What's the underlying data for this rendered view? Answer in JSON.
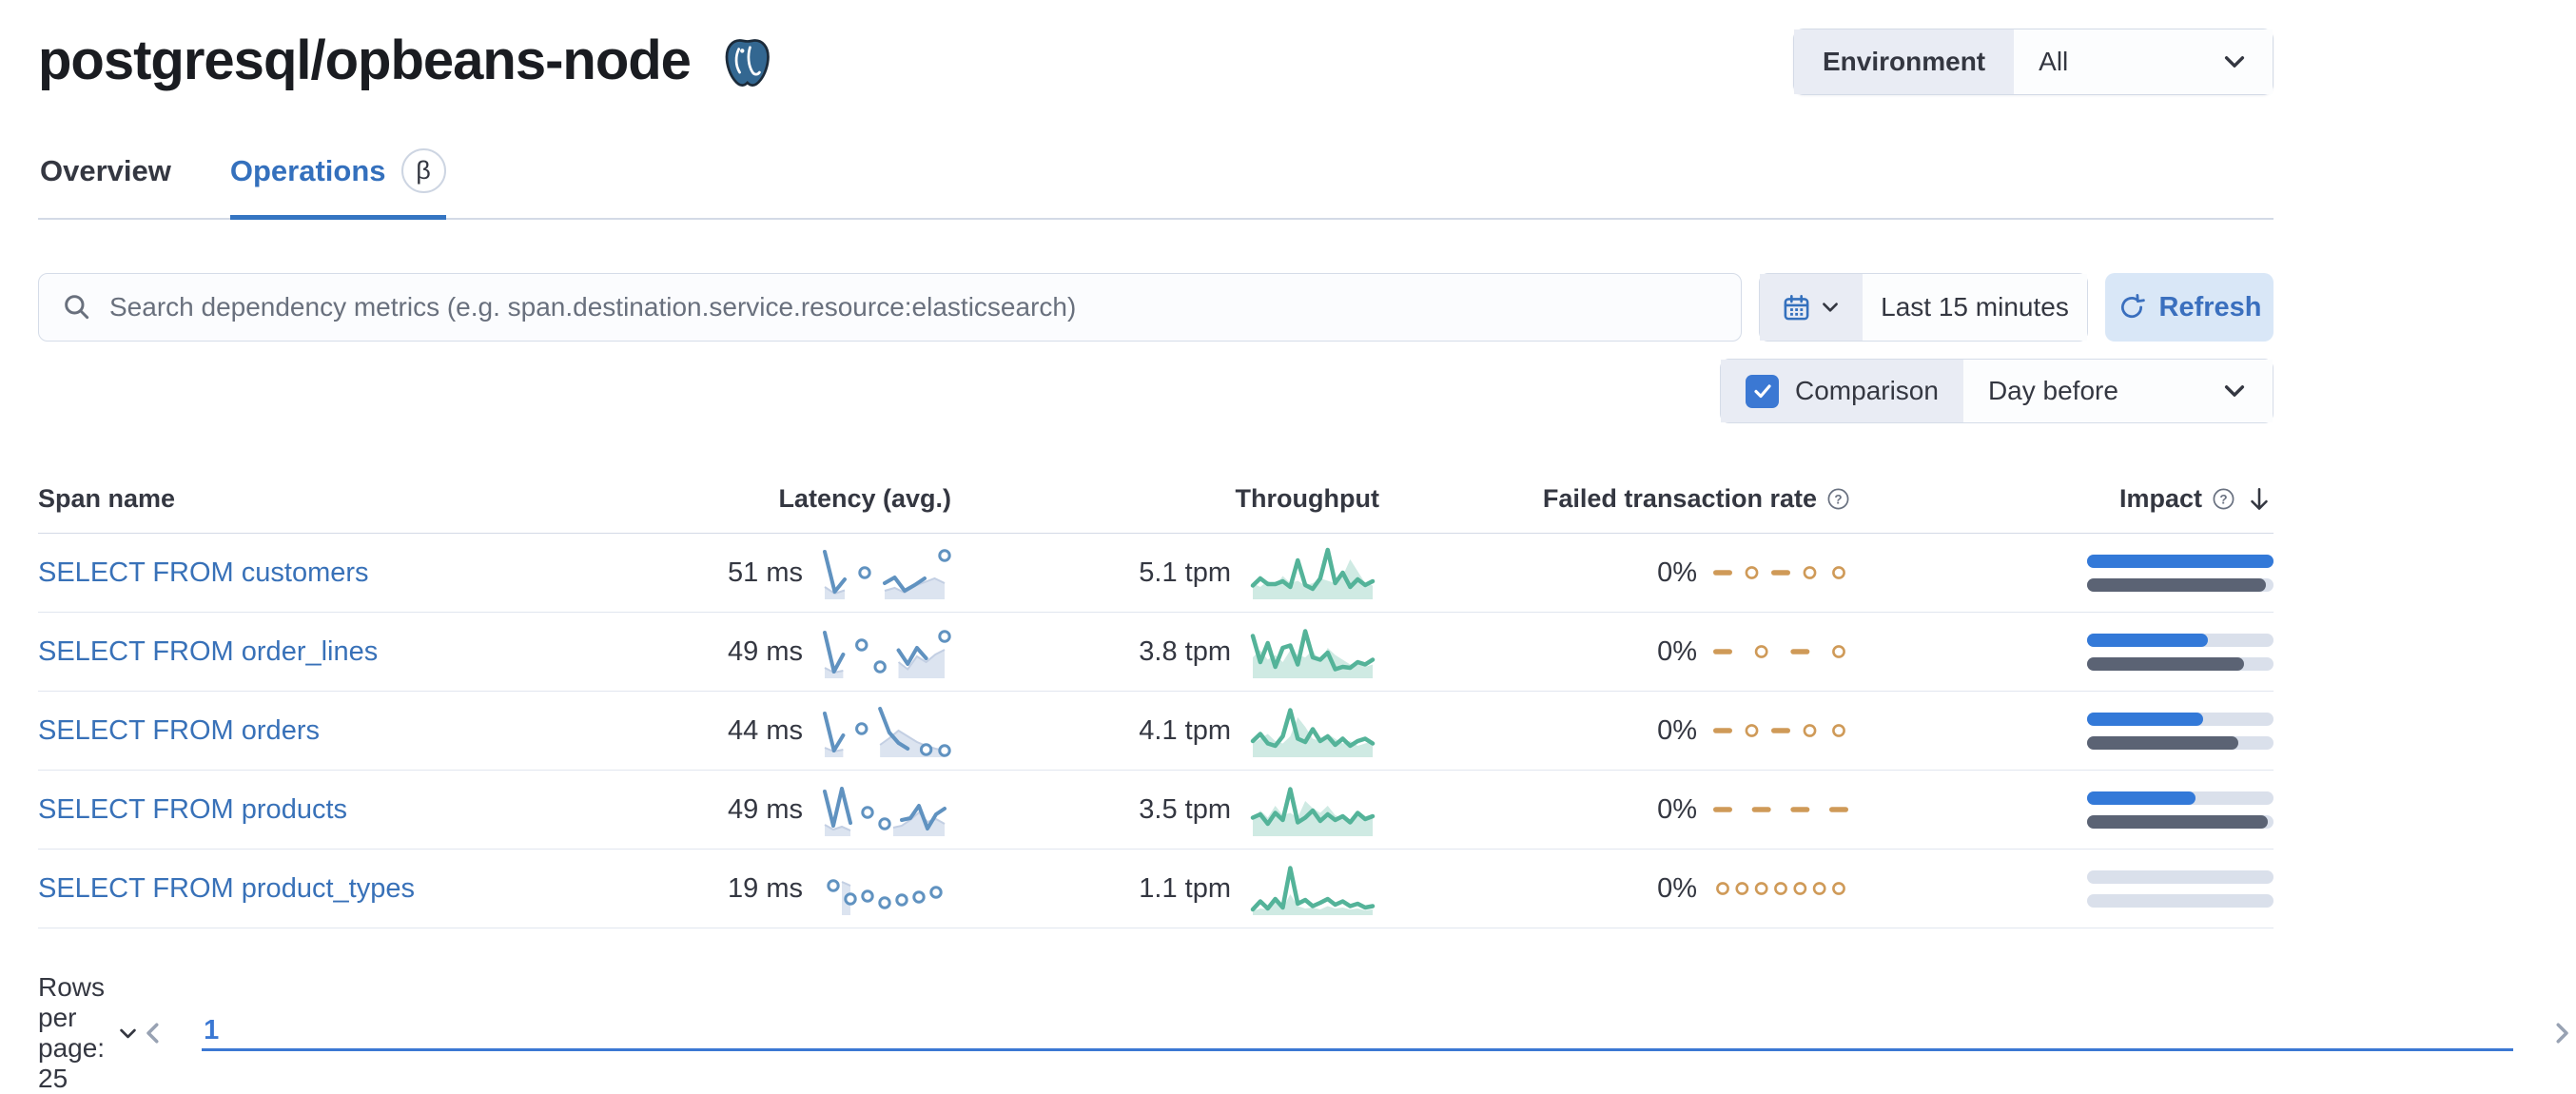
{
  "page_title": "postgresql/opbeans-node",
  "environment": {
    "label": "Environment",
    "value": "All"
  },
  "tabs": [
    {
      "label": "Overview",
      "active": false
    },
    {
      "label": "Operations",
      "active": true,
      "badge": "β"
    }
  ],
  "toolbar": {
    "search_placeholder": "Search dependency metrics (e.g. span.destination.service.resource:elasticsearch)",
    "time_range": "Last 15 minutes",
    "refresh_label": "Refresh",
    "comparison": {
      "label": "Comparison",
      "checked": true,
      "value": "Day before"
    }
  },
  "icons": {
    "logo": "postgresql-elephant",
    "search": "magnifying-glass",
    "calendar": "calendar",
    "chevron_down": "chevron-down",
    "refresh": "refresh-arrow",
    "check": "checkmark",
    "info": "question-in-circle",
    "sort": "arrow-down",
    "prev": "chevron-left",
    "next": "chevron-right"
  },
  "table": {
    "columns": [
      {
        "label": "Span name",
        "align": "left"
      },
      {
        "label": "Latency (avg.)",
        "align": "right"
      },
      {
        "label": "Throughput",
        "align": "right"
      },
      {
        "label": "Failed transaction rate",
        "align": "right",
        "info": true
      },
      {
        "label": "Impact",
        "align": "right",
        "info": true,
        "sort": "desc"
      }
    ],
    "rows": [
      {
        "span_name": "SELECT FROM customers",
        "latency": "51 ms",
        "throughput": "5.1 tpm",
        "failed_rate": "0%",
        "impact_pct": 100,
        "impact_prev_pct": 96,
        "latency_spark": {
          "curr": [
            96,
            12,
            38,
            null,
            52,
            null,
            30,
            42,
            14,
            26,
            40,
            null,
            88
          ],
          "prev": [
            22,
            8,
            15,
            null,
            null,
            null,
            14,
            20,
            10,
            24,
            32,
            40,
            30
          ]
        },
        "throughput_spark": {
          "curr": [
            25,
            40,
            28,
            28,
            34,
            22,
            78,
            26,
            18,
            40,
            100,
            30,
            52,
            22,
            38,
            26,
            34
          ],
          "prev": [
            30,
            22,
            35,
            25,
            45,
            30,
            35,
            25,
            30,
            40,
            35,
            30,
            45,
            80,
            55,
            30,
            25
          ]
        },
        "failed_spark": [
          "dash",
          "dot",
          "dash",
          "dot",
          "dot"
        ]
      },
      {
        "span_name": "SELECT FROM order_lines",
        "latency": "49 ms",
        "throughput": "3.8 tpm",
        "failed_rate": "0%",
        "impact_pct": 65,
        "impact_prev_pct": 84,
        "latency_spark": {
          "curr": [
            92,
            10,
            46,
            null,
            66,
            null,
            20,
            null,
            55,
            26,
            60,
            38,
            null,
            84
          ],
          "prev": [
            18,
            8,
            12,
            null,
            22,
            null,
            null,
            null,
            30,
            15,
            42,
            30,
            46,
            56
          ]
        },
        "throughput_spark": {
          "curr": [
            85,
            30,
            70,
            20,
            60,
            65,
            25,
            95,
            40,
            35,
            50,
            15,
            20,
            18,
            30,
            25,
            35
          ],
          "prev": [
            40,
            55,
            35,
            45,
            30,
            55,
            45,
            40,
            55,
            30,
            60,
            45,
            35,
            25,
            30,
            20,
            25
          ]
        },
        "failed_spark": [
          "dash",
          "dot",
          "dash",
          "dot"
        ]
      },
      {
        "span_name": "SELECT FROM orders",
        "latency": "44 ms",
        "throughput": "4.1 tpm",
        "failed_rate": "0%",
        "impact_pct": 62,
        "impact_prev_pct": 81,
        "latency_spark": {
          "curr": [
            88,
            10,
            42,
            null,
            56,
            null,
            98,
            48,
            26,
            14,
            null,
            12,
            null,
            10
          ],
          "prev": [
            16,
            8,
            12,
            null,
            null,
            null,
            22,
            36,
            52,
            40,
            28,
            20,
            14,
            10
          ]
        },
        "throughput_spark": {
          "curr": [
            30,
            45,
            25,
            20,
            40,
            95,
            35,
            28,
            55,
            30,
            40,
            22,
            35,
            20,
            30,
            35,
            25
          ],
          "prev": [
            25,
            35,
            45,
            30,
            25,
            40,
            80,
            60,
            35,
            30,
            45,
            35,
            25,
            30,
            20,
            25,
            30
          ]
        },
        "failed_spark": [
          "dash",
          "dot",
          "dash",
          "dot",
          "dot"
        ]
      },
      {
        "span_name": "SELECT FROM products",
        "latency": "49 ms",
        "throughput": "3.5 tpm",
        "failed_rate": "0%",
        "impact_pct": 58,
        "impact_prev_pct": 97,
        "latency_spark": {
          "curr": [
            90,
            18,
            96,
            24,
            null,
            46,
            null,
            22,
            null,
            30,
            34,
            60,
            12,
            42,
            54
          ],
          "prev": [
            20,
            10,
            16,
            8,
            null,
            12,
            null,
            null,
            14,
            18,
            30,
            46,
            26,
            32,
            22
          ]
        },
        "throughput_spark": {
          "curr": [
            35,
            42,
            22,
            45,
            30,
            95,
            25,
            35,
            50,
            28,
            42,
            30,
            38,
            25,
            45,
            32,
            38
          ],
          "prev": [
            30,
            50,
            35,
            60,
            40,
            45,
            35,
            70,
            55,
            45,
            60,
            40,
            35,
            30,
            40,
            30,
            35
          ]
        },
        "failed_spark": [
          "dash",
          "dash",
          "dash",
          "dash"
        ]
      },
      {
        "span_name": "SELECT FROM product_types",
        "latency": "19 ms",
        "throughput": "1.1 tpm",
        "failed_rate": "0%",
        "impact_pct": 0,
        "impact_prev_pct": 0,
        "latency_spark": {
          "curr": [
            null,
            58,
            null,
            30,
            null,
            36,
            null,
            22,
            null,
            28,
            null,
            34,
            null,
            44,
            null
          ],
          "prev": [
            null,
            null,
            66,
            58,
            null,
            null,
            null,
            null,
            null,
            null,
            null,
            null,
            null,
            null,
            null
          ]
        },
        "throughput_spark": {
          "curr": [
            8,
            25,
            10,
            30,
            12,
            95,
            20,
            28,
            15,
            22,
            30,
            18,
            25,
            15,
            20,
            12,
            15
          ],
          "prev": [
            5,
            10,
            8,
            25,
            10,
            40,
            15,
            10,
            12,
            8,
            15,
            10,
            12,
            8,
            10,
            6,
            8
          ]
        },
        "failed_spark": [
          "dot",
          "dot",
          "dot",
          "dot",
          "dot",
          "dot",
          "dot"
        ]
      }
    ]
  },
  "footer": {
    "rows_per_page": "Rows per page: 25",
    "page": "1"
  },
  "colors": {
    "link": "#3871b8",
    "latency_line": "#6092c0",
    "latency_prev_fill": "#dce4f0",
    "latency_prev_stroke": "#c3cfe3",
    "throughput_line": "#54b399",
    "throughput_prev_fill": "rgba(84,179,153,0.28)",
    "failed_line": "#cf9a58",
    "impact_current": "#3379d8",
    "impact_previous": "#5b6374",
    "impact_track": "#dae0eb"
  }
}
